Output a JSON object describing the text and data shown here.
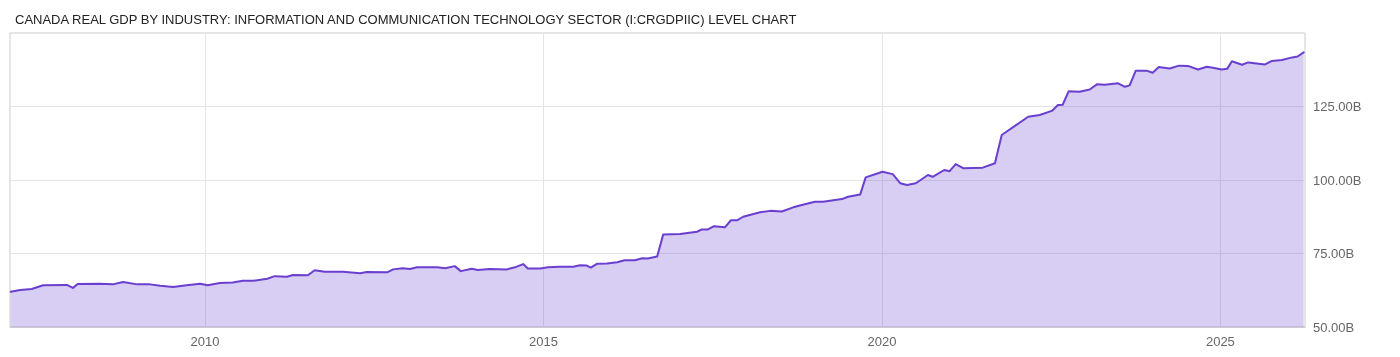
{
  "chart_data": {
    "type": "area",
    "title": "CANADA REAL GDP BY INDUSTRY: INFORMATION AND COMMUNICATION TECHNOLOGY SECTOR (I:CRGDPIIC) LEVEL CHART",
    "x": [
      2007.13,
      2007.27,
      2007.44,
      2007.61,
      2007.96,
      2008.05,
      2008.12,
      2008.45,
      2008.64,
      2008.79,
      2009.0,
      2009.19,
      2009.34,
      2009.53,
      2009.73,
      2009.93,
      2010.04,
      2010.22,
      2010.41,
      2010.56,
      2010.71,
      2010.92,
      2011.03,
      2011.21,
      2011.3,
      2011.52,
      2011.62,
      2011.77,
      2012.04,
      2012.29,
      2012.39,
      2012.69,
      2012.78,
      2012.92,
      2013.03,
      2013.13,
      2013.43,
      2013.55,
      2013.69,
      2013.78,
      2013.94,
      2014.03,
      2014.21,
      2014.46,
      2014.58,
      2014.7,
      2014.77,
      2014.95,
      2015.07,
      2015.24,
      2015.44,
      2015.54,
      2015.64,
      2015.7,
      2015.79,
      2015.94,
      2016.09,
      2016.2,
      2016.35,
      2016.46,
      2016.54,
      2016.68,
      2016.77,
      2017.02,
      2017.27,
      2017.34,
      2017.43,
      2017.52,
      2017.68,
      2017.77,
      2017.86,
      2017.95,
      2018.2,
      2018.35,
      2018.52,
      2018.69,
      2018.89,
      2019.01,
      2019.13,
      2019.41,
      2019.5,
      2019.68,
      2019.76,
      2020.01,
      2020.16,
      2020.27,
      2020.37,
      2020.5,
      2020.68,
      2020.75,
      2020.92,
      2021.0,
      2021.09,
      2021.2,
      2021.49,
      2021.67,
      2021.77,
      2022.16,
      2022.33,
      2022.51,
      2022.6,
      2022.67,
      2022.76,
      2022.92,
      2023.07,
      2023.18,
      2023.29,
      2023.49,
      2023.59,
      2023.66,
      2023.75,
      2023.91,
      2024.0,
      2024.09,
      2024.25,
      2024.39,
      2024.52,
      2024.67,
      2024.8,
      2024.89,
      2025.02,
      2025.1,
      2025.17,
      2025.32,
      2025.41,
      2025.66,
      2025.76,
      2025.91,
      2026.06,
      2026.14,
      2026.23
    ],
    "series": [
      {
        "color": "#6a3fd0",
        "values": [
          62.0,
          62.6,
          62.9,
          64.2,
          64.3,
          63.3,
          64.6,
          64.7,
          64.5,
          65.3,
          64.5,
          64.5,
          64.0,
          63.6,
          64.2,
          64.7,
          64.2,
          65.0,
          65.1,
          65.7,
          65.7,
          66.4,
          67.3,
          67.1,
          67.7,
          67.6,
          69.3,
          68.8,
          68.8,
          68.3,
          68.7,
          68.6,
          69.6,
          70.0,
          69.7,
          70.3,
          70.3,
          70.0,
          70.7,
          69.0,
          69.8,
          69.4,
          69.7,
          69.6,
          70.3,
          71.4,
          69.9,
          69.9,
          70.3,
          70.5,
          70.5,
          71.0,
          70.9,
          70.2,
          71.5,
          71.6,
          72.0,
          72.7,
          72.7,
          73.4,
          73.3,
          74.0,
          81.5,
          81.6,
          82.4,
          83.2,
          83.2,
          84.3,
          83.9,
          86.3,
          86.3,
          87.5,
          89.0,
          89.5,
          89.3,
          90.7,
          91.9,
          92.6,
          92.6,
          93.5,
          94.3,
          95.1,
          100.9,
          102.8,
          102.0,
          98.9,
          98.3,
          98.9,
          101.7,
          101.1,
          103.4,
          103.0,
          105.4,
          104.0,
          104.2,
          105.7,
          115.3,
          121.5,
          122.1,
          123.5,
          125.5,
          125.6,
          130.2,
          130.0,
          130.8,
          132.6,
          132.4,
          132.9,
          131.7,
          132.2,
          137.2,
          137.2,
          136.5,
          138.4,
          137.9,
          138.9,
          138.8,
          137.6,
          138.5,
          138.2,
          137.6,
          137.8,
          140.4,
          139.2,
          140.0,
          139.3,
          140.5,
          140.8,
          141.7,
          142.0,
          143.4
        ]
      }
    ],
    "xlim": [
      2007.12,
      2026.25
    ],
    "xticks": [
      2010,
      2015,
      2020,
      2025
    ],
    "ylim": [
      50,
      150
    ],
    "yticks": [
      {
        "value": 50,
        "label": "50.00B"
      },
      {
        "value": 75,
        "label": "75.00B"
      },
      {
        "value": 100,
        "label": "100.00B"
      },
      {
        "value": 125,
        "label": "125.00B"
      }
    ],
    "grid": true,
    "marker": "none",
    "line_style": "solid"
  }
}
